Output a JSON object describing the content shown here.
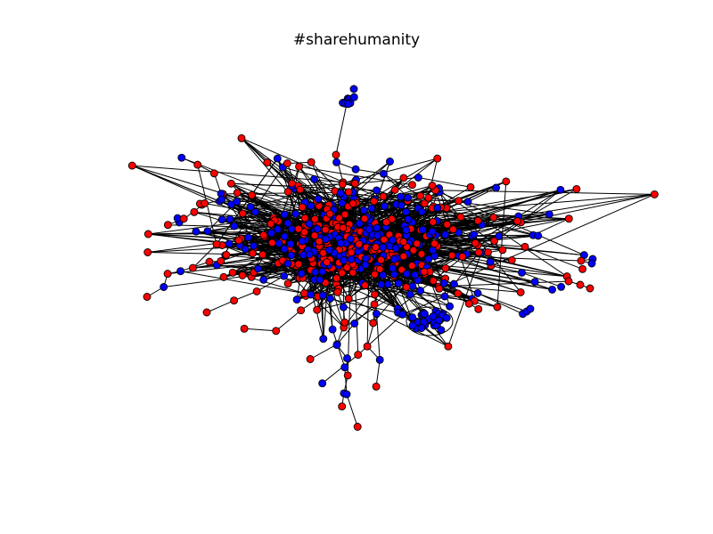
{
  "figure": {
    "title": "#sharehumanity"
  },
  "colors": {
    "red_node": "#ff0000",
    "blue_node": "#0000ff",
    "edge": "#000000",
    "background": "#ffffff"
  },
  "legend": []
}
